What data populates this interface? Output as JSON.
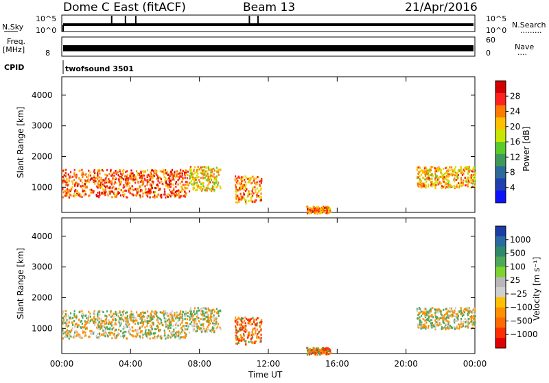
{
  "header": {
    "station": "Dome C East (fitACF)",
    "beam": "Beam 13",
    "date": "21/Apr/2016"
  },
  "noise_panel": {
    "left_label": "N.Sky",
    "right_label": "N.Search",
    "right_dots": ".........",
    "left_ticks": [
      "10^5",
      "10^0"
    ],
    "right_ticks": [
      "10^5",
      "10^0"
    ]
  },
  "freq_panel": {
    "label_top": "Freq.",
    "label_unit": "[MHz]",
    "left_ticks": [
      "8"
    ],
    "right_label": "Nave",
    "right_dots": "....",
    "right_ticks": [
      "60",
      "0"
    ]
  },
  "cpid": {
    "label": "CPID",
    "value": "twofsound 3501"
  },
  "range_axis": {
    "label": "Slant Range [km]",
    "ticks": [
      "4000",
      "3000",
      "2000",
      "1000"
    ]
  },
  "time_axis": {
    "label": "Time UT",
    "ticks": [
      "00:00",
      "04:00",
      "08:00",
      "12:00",
      "16:00",
      "20:00",
      "00:00"
    ]
  },
  "power_scale": {
    "label": "Power [dB]",
    "ticks": [
      "28",
      "24",
      "20",
      "16",
      "12",
      "8",
      "4"
    ],
    "colors": [
      "#d40000",
      "#ff2020",
      "#ff7a00",
      "#ffc000",
      "#c8e600",
      "#5acb2a",
      "#3f9a5a",
      "#2d6a9a",
      "#1d3fb0",
      "#0c12ff"
    ]
  },
  "velocity_scale": {
    "label": "Velocity [m s⁻¹]",
    "ticks": [
      "1000",
      "500",
      "100",
      "25",
      "−25",
      "−100",
      "−500",
      "−1000"
    ],
    "colors": [
      "#1c3da6",
      "#2a6aa0",
      "#2e8a6a",
      "#4ea85a",
      "#7cd42c",
      "#b8b8b8",
      "#cfcfcf",
      "#ffc000",
      "#ff9000",
      "#ff6a00",
      "#ff2e00",
      "#e00000"
    ]
  },
  "chart_data": {
    "type": "heatmap",
    "title": "Dome C East (fitACF) Beam 13 21/Apr/2016",
    "xlabel": "Time UT",
    "ylabel": "Slant Range [km]",
    "xlim": [
      "00:00",
      "24:00"
    ],
    "ylim": [
      180,
      4600
    ],
    "panels": [
      {
        "quantity": "Power [dB]",
        "scale": [
          0,
          32
        ],
        "regions": [
          {
            "t_start": 0.0,
            "t_end": 7.4,
            "range_min": 700,
            "range_max": 1600,
            "power_db": 26,
            "velocity": -100
          },
          {
            "t_start": 7.4,
            "t_end": 9.2,
            "range_min": 900,
            "range_max": 1700,
            "power_db": 20,
            "velocity": -100
          },
          {
            "t_start": 10.0,
            "t_end": 11.6,
            "range_min": 500,
            "range_max": 1400,
            "power_db": 24,
            "velocity": -500
          },
          {
            "t_start": 14.2,
            "t_end": 15.6,
            "range_min": 180,
            "range_max": 400,
            "power_db": 24,
            "velocity": -500
          },
          {
            "t_start": 20.6,
            "t_end": 24.0,
            "range_min": 1000,
            "range_max": 1700,
            "power_db": 22,
            "velocity": -100
          }
        ]
      },
      {
        "quantity": "Velocity [m s⁻¹]",
        "scale": [
          -1000,
          1000
        ]
      }
    ]
  }
}
